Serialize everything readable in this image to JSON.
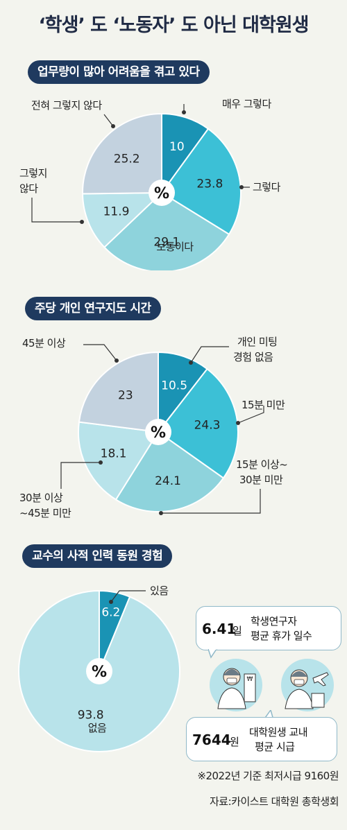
{
  "title": "‘학생’ 도 ‘노동자’ 도 아닌 대학원생",
  "chart_data": [
    {
      "type": "pie",
      "title": "업무량이 많아 어려움을 겪고 있다",
      "center_label": "%",
      "categories": [
        "매우 그렇다",
        "그렇다",
        "보통이다",
        "그렇지 않다",
        "전혀 그렇지 않다"
      ],
      "values": [
        10,
        23.8,
        29.1,
        11.9,
        25.2
      ],
      "value_labels": [
        "10",
        "23.8",
        "29.1",
        "11.9",
        "25.2"
      ],
      "colors": [
        "#1a93b4",
        "#3cc0d6",
        "#8ed3dc",
        "#b8e3ea",
        "#c3d2df"
      ]
    },
    {
      "type": "pie",
      "title": "주당 개인 연구지도 시간",
      "center_label": "%",
      "categories": [
        "개인 미팅 경험 없음",
        "15분 미만",
        "15분 이상~ 30분 미만",
        "30분 이상 ~45분 미만",
        "45분 이상"
      ],
      "values": [
        10.5,
        24.3,
        24.1,
        18.1,
        23
      ],
      "value_labels": [
        "10.5",
        "24.3",
        "24.1",
        "18.1",
        "23"
      ],
      "colors": [
        "#1a93b4",
        "#3cc0d6",
        "#8ed3dc",
        "#b8e3ea",
        "#c3d2df"
      ]
    },
    {
      "type": "pie",
      "title": "교수의 사적 인력 동원 경험",
      "center_label": "%",
      "categories": [
        "있음",
        "없음"
      ],
      "values": [
        6.2,
        93.8
      ],
      "value_labels": [
        "6.2",
        "93.8"
      ],
      "colors": [
        "#1a93b4",
        "#b8e3ea"
      ]
    }
  ],
  "labels": {
    "p1": {
      "a": "매우 그렇다",
      "b": "그렇다",
      "c": "보통이다",
      "d1": "그렇지",
      "d2": "않다",
      "e": "전혀 그렇지 않다"
    },
    "p2": {
      "a1": "개인 미팅",
      "a2": "경험 없음",
      "b": "15분 미만",
      "c1": "15분 이상~",
      "c2": "30분 미만",
      "d1": "30분 이상",
      "d2": "~45분 미만",
      "e": "45분 이상"
    },
    "p3": {
      "a": "있음",
      "b": "없음"
    }
  },
  "stats": {
    "vacation_value": "6.41",
    "vacation_unit": "일",
    "vacation_l1": "학생연구자",
    "vacation_l2": "평균 휴가 일수",
    "wage_value": "7644",
    "wage_unit": "원",
    "wage_l1": "대학원생 교내",
    "wage_l2": "평균 시급"
  },
  "footnote": "※2022년 기준   최저시급 9160원",
  "source": "자료:카이스트 대학원 총학생회",
  "icons": [
    "researcher-icon",
    "traveler-icon"
  ]
}
